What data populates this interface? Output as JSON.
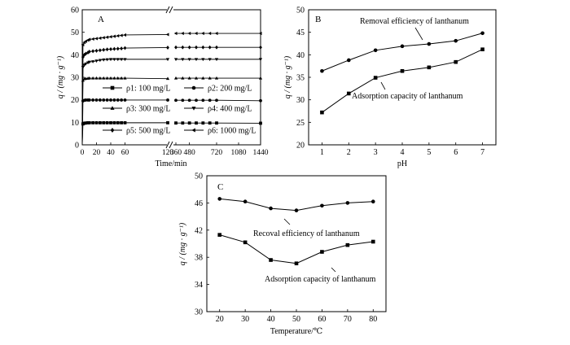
{
  "chart_data": [
    {
      "panel": "A",
      "type": "line",
      "xlabel": "Time/min",
      "ylabel": "q / (mg · g⁻¹)",
      "xticks": [
        "0",
        "20",
        "40",
        "60",
        "120",
        "360",
        "480",
        "720",
        "1080",
        "1440"
      ],
      "yticks": [
        0,
        10,
        20,
        30,
        40,
        50,
        60
      ],
      "ylim": [
        0,
        60
      ],
      "axis_break": "between 120 and 360",
      "legend": [
        {
          "symbol": "square",
          "label": "ρ1: 100 mg/L"
        },
        {
          "symbol": "circle",
          "label": "ρ2: 200 mg/L"
        },
        {
          "symbol": "triangle-up",
          "label": "ρ3: 300 mg/L"
        },
        {
          "symbol": "triangle-down",
          "label": "ρ4: 400 mg/L"
        },
        {
          "symbol": "diamond",
          "label": "ρ5: 500 mg/L"
        },
        {
          "symbol": "triangle-left",
          "label": "ρ6: 1000 mg/L"
        }
      ],
      "series": [
        {
          "name": "ρ1: 100 mg/L",
          "symbol": "square",
          "x": [
            0,
            1,
            3,
            5,
            8,
            10,
            15,
            20,
            25,
            30,
            35,
            40,
            45,
            50,
            55,
            60,
            120,
            360,
            420,
            480,
            540,
            600,
            660,
            720,
            1440
          ],
          "y": [
            0,
            9.3,
            9.6,
            9.7,
            9.8,
            9.8,
            9.8,
            9.8,
            9.8,
            9.8,
            9.8,
            9.8,
            9.8,
            9.8,
            9.8,
            9.8,
            9.8,
            9.7,
            9.7,
            9.7,
            9.7,
            9.7,
            9.7,
            9.7,
            9.6
          ]
        },
        {
          "name": "ρ2: 200 mg/L",
          "symbol": "circle",
          "x": [
            0,
            1,
            3,
            5,
            8,
            10,
            15,
            20,
            25,
            30,
            35,
            40,
            45,
            50,
            55,
            60,
            120,
            360,
            420,
            480,
            540,
            600,
            660,
            720,
            1440
          ],
          "y": [
            0,
            19.5,
            19.8,
            19.9,
            19.9,
            19.9,
            19.9,
            19.9,
            19.9,
            19.9,
            19.9,
            19.9,
            19.9,
            19.9,
            19.9,
            19.9,
            19.9,
            19.8,
            19.8,
            19.8,
            19.8,
            19.8,
            19.8,
            19.8,
            19.6
          ]
        },
        {
          "name": "ρ3: 300 mg/L",
          "symbol": "triangle-up",
          "x": [
            0,
            1,
            3,
            5,
            8,
            10,
            15,
            20,
            25,
            30,
            35,
            40,
            45,
            50,
            55,
            60,
            120,
            360,
            420,
            480,
            540,
            600,
            660,
            720,
            1440
          ],
          "y": [
            0,
            28.6,
            29.3,
            29.4,
            29.5,
            29.6,
            29.6,
            29.6,
            29.6,
            29.6,
            29.6,
            29.6,
            29.6,
            29.6,
            29.6,
            29.6,
            29.4,
            29.6,
            29.6,
            29.6,
            29.6,
            29.6,
            29.6,
            29.6,
            29.6
          ]
        },
        {
          "name": "ρ4: 400 mg/L",
          "symbol": "triangle-down",
          "x": [
            0,
            1,
            3,
            5,
            8,
            10,
            15,
            20,
            25,
            30,
            35,
            40,
            45,
            50,
            55,
            60,
            120,
            360,
            420,
            480,
            540,
            600,
            660,
            720,
            1440
          ],
          "y": [
            0,
            34.5,
            35.5,
            36.0,
            36.5,
            36.8,
            37.0,
            37.3,
            37.6,
            37.8,
            37.9,
            38.0,
            38.0,
            38.0,
            38.0,
            38.0,
            38.0,
            38.0,
            38.0,
            38.0,
            38.0,
            38.0,
            38.0,
            38.0,
            38.0
          ]
        },
        {
          "name": "ρ5: 500 mg/L",
          "symbol": "diamond",
          "x": [
            0,
            1,
            3,
            5,
            8,
            10,
            15,
            20,
            25,
            30,
            35,
            40,
            45,
            50,
            55,
            60,
            120,
            360,
            420,
            480,
            540,
            600,
            660,
            720,
            1440
          ],
          "y": [
            0,
            39.0,
            40.0,
            40.5,
            41.0,
            41.4,
            41.6,
            41.8,
            42.0,
            42.2,
            42.4,
            42.5,
            42.6,
            42.7,
            42.8,
            43.0,
            43.2,
            43.3,
            43.3,
            43.3,
            43.3,
            43.3,
            43.3,
            43.3,
            43.3
          ]
        },
        {
          "name": "ρ6: 1000 mg/L",
          "symbol": "triangle-left",
          "x": [
            0,
            1,
            3,
            5,
            8,
            10,
            15,
            20,
            25,
            30,
            35,
            40,
            45,
            50,
            55,
            60,
            120,
            360,
            420,
            480,
            540,
            600,
            660,
            720,
            1440
          ],
          "y": [
            0,
            44.5,
            45.5,
            46.0,
            46.5,
            46.8,
            47.0,
            47.2,
            47.4,
            47.6,
            47.8,
            48.0,
            48.2,
            48.4,
            48.6,
            48.8,
            49.0,
            49.5,
            49.5,
            49.5,
            49.5,
            49.5,
            49.5,
            49.5,
            49.5
          ]
        }
      ]
    },
    {
      "panel": "B",
      "type": "line",
      "xlabel": "pH",
      "ylabel": "q / (mg · g⁻¹)",
      "xticks": [
        1,
        2,
        3,
        4,
        5,
        6,
        7
      ],
      "yticks": [
        20,
        25,
        30,
        35,
        40,
        45,
        50
      ],
      "xlim": [
        0.5,
        7.5
      ],
      "ylim": [
        20,
        50
      ],
      "annotations": [
        "Removal efficiency of lanthanum",
        "Adsorption capacity of lanthanum"
      ],
      "series": [
        {
          "name": "Removal efficiency of lanthanum",
          "symbol": "circle",
          "x": [
            1,
            2,
            3,
            4,
            5,
            6,
            7
          ],
          "y": [
            36.4,
            38.8,
            41.0,
            41.9,
            42.4,
            43.1,
            44.8
          ]
        },
        {
          "name": "Adsorption capacity of lanthanum",
          "symbol": "square",
          "x": [
            1,
            2,
            3,
            4,
            5,
            6,
            7
          ],
          "y": [
            27.2,
            31.4,
            34.9,
            36.4,
            37.2,
            38.4,
            41.2
          ]
        }
      ]
    },
    {
      "panel": "C",
      "type": "line",
      "xlabel": "Temperature/℃",
      "ylabel": "q / (mg · g⁻¹)",
      "xticks": [
        20,
        30,
        40,
        50,
        60,
        70,
        80
      ],
      "yticks": [
        30,
        34,
        38,
        42,
        46,
        50
      ],
      "xlim": [
        15,
        85
      ],
      "ylim": [
        30,
        50
      ],
      "annotations": [
        "Recoval efficiency of lanthanum",
        "Adsorption capacity of lanthanum"
      ],
      "series": [
        {
          "name": "Recoval efficiency of lanthanum",
          "symbol": "circle",
          "x": [
            20,
            30,
            40,
            50,
            60,
            70,
            80
          ],
          "y": [
            46.6,
            46.2,
            45.2,
            44.9,
            45.6,
            46.0,
            46.2
          ]
        },
        {
          "name": "Adsorption capacity of lanthanum",
          "symbol": "square",
          "x": [
            20,
            30,
            40,
            50,
            60,
            70,
            80
          ],
          "y": [
            41.3,
            40.2,
            37.6,
            37.1,
            38.8,
            39.8,
            40.3
          ]
        }
      ]
    }
  ]
}
